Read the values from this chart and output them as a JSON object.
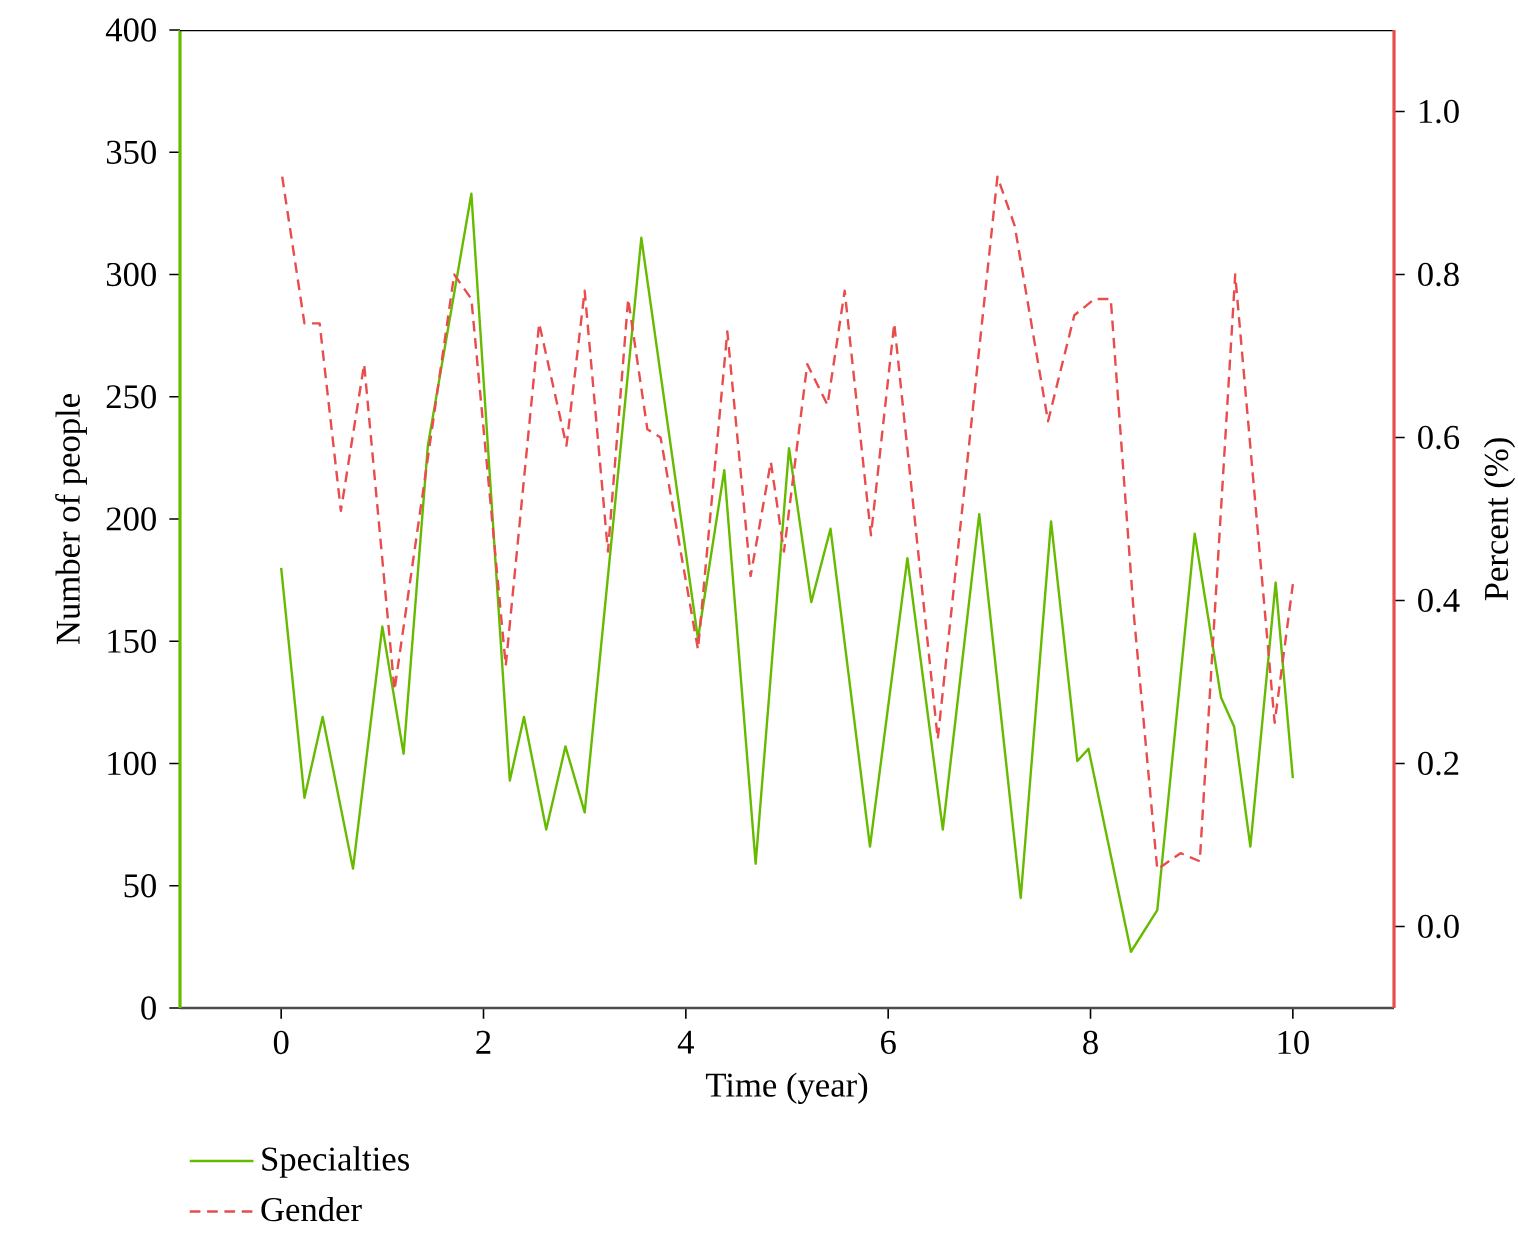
{
  "chart_data": {
    "type": "line",
    "xlabel": "Time (year)",
    "ylabel": "Number of people",
    "y2label": "Percent (%)",
    "xlim": [
      -1,
      11
    ],
    "xticks": [
      0,
      2,
      4,
      6,
      8,
      10
    ],
    "ylim": [
      0,
      400
    ],
    "yticks": [
      0,
      50,
      100,
      150,
      200,
      250,
      300,
      350,
      400
    ],
    "y2lim": [
      -0.1,
      1.1
    ],
    "y2ticks": [
      {
        "value": 0,
        "label": "0.0"
      },
      {
        "value": 0.2,
        "label": "0.2"
      },
      {
        "value": 0.4,
        "label": "0.4"
      },
      {
        "value": 0.6,
        "label": "0.6"
      },
      {
        "value": 0.8,
        "label": "0.8"
      },
      {
        "value": 1.0,
        "label": "1.0"
      }
    ],
    "grid": false,
    "legend": "bottom left",
    "marker": "none",
    "series": [
      {
        "name": "Specialties",
        "color": "#66bb00",
        "line_style": "solid",
        "x": [
          0,
          0.23,
          0.41,
          0.71,
          1.0,
          1.21,
          1.45,
          1.88,
          2.26,
          2.4,
          2.62,
          2.81,
          3.0,
          3.56,
          4.12,
          4.38,
          4.69,
          5.02,
          5.24,
          5.43,
          5.82,
          6.19,
          6.54,
          6.9,
          7.31,
          7.61,
          7.87,
          7.98,
          8.4,
          8.66,
          9.03,
          9.29,
          9.42,
          9.58,
          9.83,
          10.0
        ],
        "values": [
          180,
          86,
          119,
          57,
          156,
          104,
          230,
          333,
          93,
          119,
          73,
          107,
          80,
          315,
          151,
          220,
          59,
          229,
          166,
          196,
          66,
          184,
          73,
          202,
          45,
          199,
          101,
          106,
          23,
          40,
          194,
          127,
          115,
          66,
          174,
          94
        ]
      },
      {
        "name": "Gender",
        "color": "#e84c4c",
        "line_style": "dashed",
        "axis": "y2",
        "x": [
          0.01,
          0.23,
          0.38,
          0.59,
          0.82,
          1.12,
          1.71,
          1.88,
          2.22,
          2.55,
          2.82,
          3.0,
          3.23,
          3.43,
          3.62,
          3.75,
          4.12,
          4.41,
          4.64,
          4.84,
          4.97,
          5.2,
          5.4,
          5.57,
          5.83,
          6.06,
          6.49,
          6.79,
          7.08,
          7.25,
          7.58,
          7.84,
          8.04,
          8.2,
          8.43,
          8.66,
          8.89,
          9.08,
          9.43,
          9.82,
          10.0
        ],
        "values": [
          0.92,
          0.74,
          0.74,
          0.51,
          0.69,
          0.29,
          0.8,
          0.77,
          0.32,
          0.74,
          0.59,
          0.78,
          0.46,
          0.77,
          0.61,
          0.6,
          0.34,
          0.73,
          0.43,
          0.57,
          0.46,
          0.69,
          0.64,
          0.78,
          0.48,
          0.74,
          0.23,
          0.58,
          0.92,
          0.86,
          0.62,
          0.75,
          0.77,
          0.77,
          0.38,
          0.07,
          0.09,
          0.08,
          0.8,
          0.25,
          0.42
        ]
      }
    ]
  }
}
